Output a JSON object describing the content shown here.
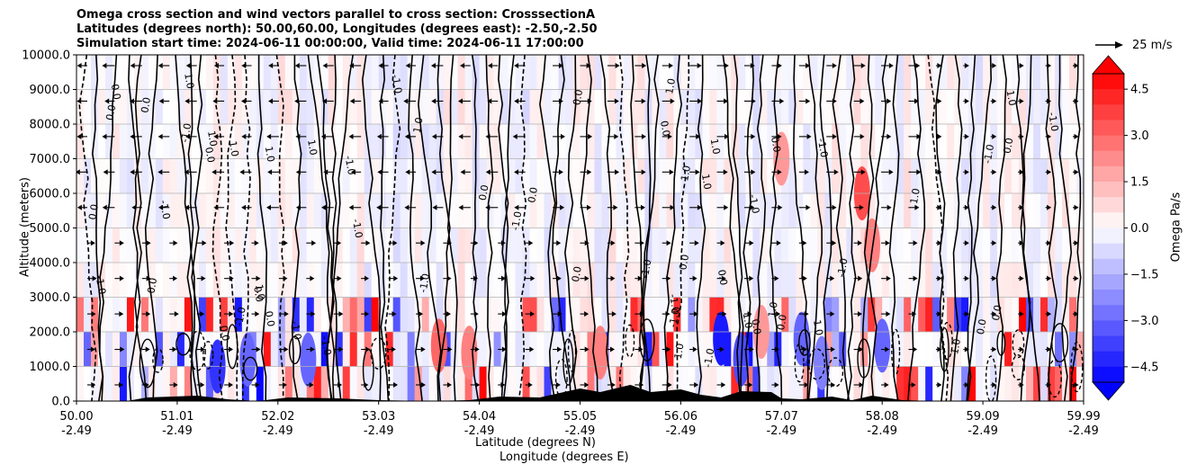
{
  "title": {
    "line1": "Omega cross section and wind vectors parallel to cross section: CrosssectionA",
    "line2": "Latitudes (degrees north): 50.00,60.00, Longitudes (degrees east): -2.50,-2.50",
    "line3": "Simulation start time: 2024-06-11 00:00:00, Valid time: 2024-06-11 17:00:00"
  },
  "chart_data": {
    "type": "heatmap",
    "description_of_fields": "filled contour of omega with black contour lines, wind quiver arrows and terrain silhouette",
    "xlabel_line1": "Latitude (degrees N)",
    "xlabel_line2": "Longitude (degrees E)",
    "ylabel": "Altitude (meters)",
    "ylim": [
      0,
      10000
    ],
    "yticks": [
      "0.0",
      "1000.0",
      "2000.0",
      "3000.0",
      "4000.0",
      "5000.0",
      "6000.0",
      "7000.0",
      "8000.0",
      "9000.0",
      "10000.0"
    ],
    "xticks_lat": [
      "50.00",
      "51.01",
      "52.02",
      "53.03",
      "54.04",
      "55.05",
      "56.06",
      "57.07",
      "58.08",
      "59.09",
      "59.99"
    ],
    "xticks_lon": [
      "-2.49",
      "-2.49",
      "-2.49",
      "-2.49",
      "-2.49",
      "-2.49",
      "-2.49",
      "-2.49",
      "-2.49",
      "-2.49",
      "-2.49"
    ],
    "grid": true,
    "colorbar": {
      "label": "Omega Pa/s",
      "ticks": [
        "4.5",
        "3.0",
        "1.5",
        "0.0",
        "−1.5",
        "−3.0",
        "−4.5"
      ],
      "range": [
        -5.0,
        5.0
      ],
      "extend": "both",
      "colormap": "bwr"
    },
    "reference_vector_label": "25 m/s",
    "contour_labels": [
      "0.0",
      "1.0",
      "-1.0"
    ],
    "colors": {
      "positive": "#ff0000",
      "negative": "#0000ff",
      "neutral": "#ffffff"
    }
  }
}
